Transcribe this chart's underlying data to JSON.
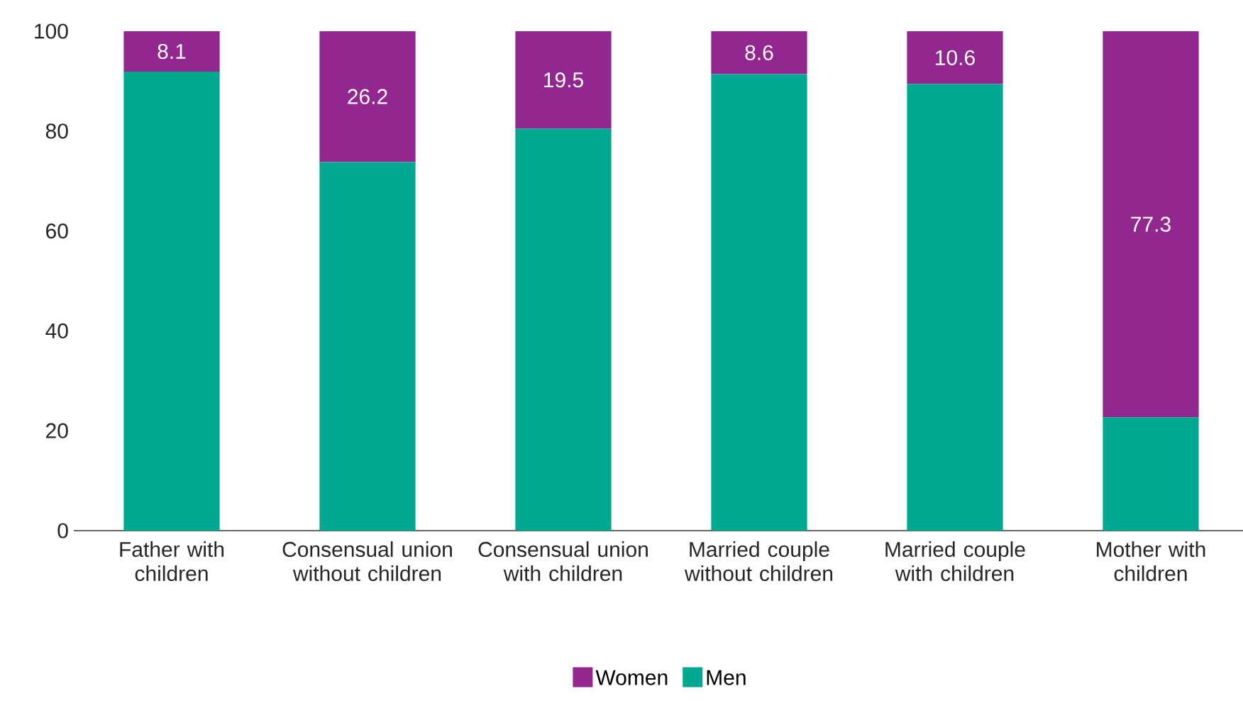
{
  "chart_data": {
    "type": "bar",
    "stacked": true,
    "categories": [
      "Father with children",
      "Consensual union without children",
      "Consensual union with children",
      "Married couple without children",
      "Married couple with children",
      "Mother with children"
    ],
    "series": [
      {
        "name": "Men",
        "color": "#00a88f",
        "values": [
          91.9,
          73.8,
          80.5,
          91.4,
          89.4,
          22.7
        ]
      },
      {
        "name": "Women",
        "color": "#92278f",
        "values": [
          8.1,
          26.2,
          19.5,
          8.6,
          10.6,
          77.3
        ],
        "value_labels": [
          "8.1",
          "26.2",
          "19.5",
          "8.6",
          "10.6",
          "77.3"
        ]
      }
    ],
    "ylim": [
      0,
      100
    ],
    "yticks": [
      0,
      20,
      40,
      60,
      80,
      100
    ],
    "grid": false,
    "legend": "bottom"
  }
}
